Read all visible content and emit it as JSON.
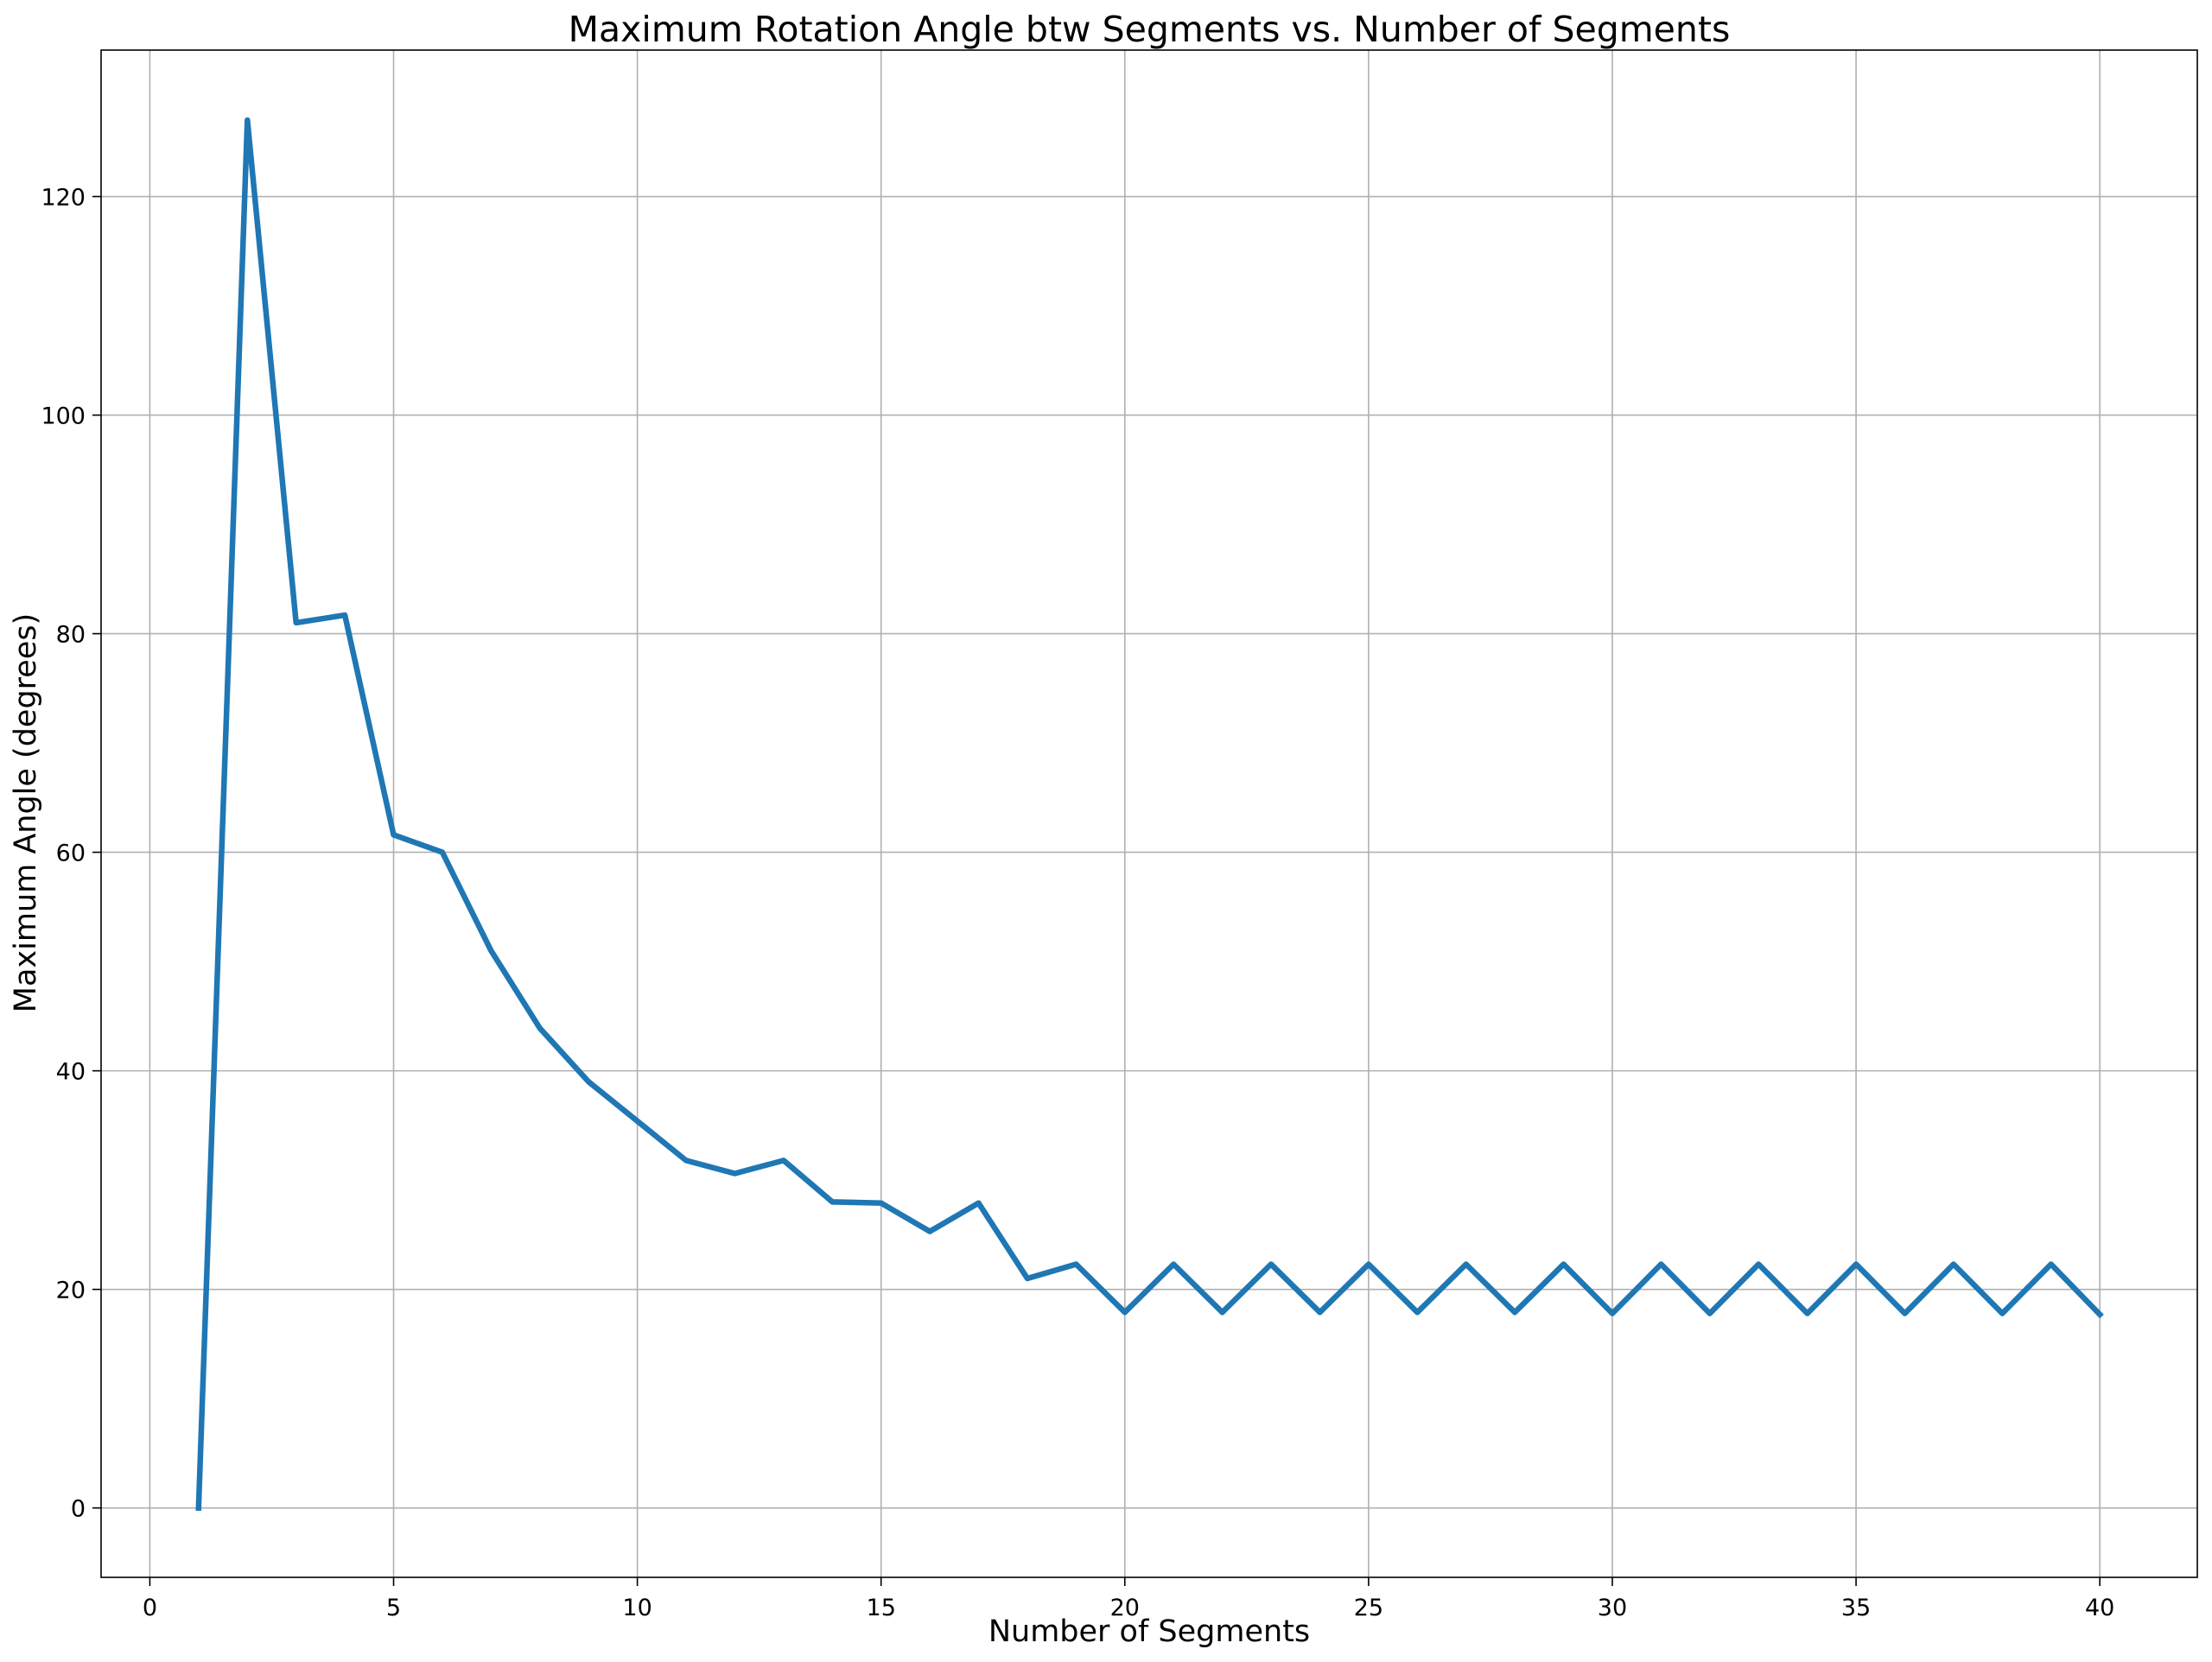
{
  "chart_data": {
    "type": "line",
    "title": "Maximum Rotation Angle btw Segments vs. Number of Segments",
    "xlabel": "Number of Segments",
    "ylabel": "Maximum Angle (degrees)",
    "xlim": [
      -1,
      42
    ],
    "ylim": [
      -6.35,
      133.4
    ],
    "xticks": [
      0,
      5,
      10,
      15,
      20,
      25,
      30,
      35,
      40
    ],
    "xtick_labels": [
      "0",
      "5",
      "10",
      "15",
      "20",
      "25",
      "30",
      "35",
      "40"
    ],
    "yticks": [
      0,
      20,
      40,
      60,
      80,
      100,
      120
    ],
    "ytick_labels": [
      "0",
      "20",
      "40",
      "60",
      "80",
      "100",
      "120"
    ],
    "grid": true,
    "line_color": "#1f77b4",
    "series": [
      {
        "x": [
          1,
          2,
          3,
          4,
          5,
          6,
          7,
          8,
          9,
          10,
          11,
          12,
          13,
          14,
          15,
          16,
          17,
          18,
          19,
          20,
          21,
          22,
          23,
          24,
          25,
          26,
          27,
          28,
          29,
          30,
          31,
          32,
          33,
          34,
          35,
          36,
          37,
          38,
          39,
          40
        ],
        "values": [
          0,
          127,
          81,
          81.7,
          61.6,
          60,
          51,
          43.9,
          39,
          35.4,
          31.8,
          30.6,
          31.8,
          28,
          27.9,
          25.3,
          27.9,
          21,
          22.3,
          17.9,
          22.3,
          17.9,
          22.3,
          17.9,
          22.3,
          17.9,
          22.3,
          17.9,
          22.3,
          17.8,
          22.3,
          17.8,
          22.3,
          17.8,
          22.3,
          17.8,
          22.3,
          17.8,
          22.3,
          17.7
        ]
      }
    ]
  }
}
